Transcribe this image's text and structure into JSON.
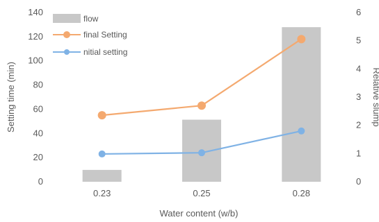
{
  "chart_data": {
    "type": "bar",
    "categories": [
      "0.23",
      "0.25",
      "0.28"
    ],
    "xlabel": "Water content (w/b)",
    "ylabel_left": "Setting time (min)",
    "ylabel_right": "Relative slump",
    "ylim_left": [
      0,
      140
    ],
    "yticks_left": [
      "0",
      "20",
      "40",
      "60",
      "80",
      "100",
      "120",
      "140"
    ],
    "ylim_right": [
      0,
      6
    ],
    "yticks_right": [
      "0",
      "1",
      "2",
      "3",
      "4",
      "5",
      "6"
    ],
    "grid": false,
    "legend_position": "top-left",
    "series": [
      {
        "name": "flow",
        "kind": "bar",
        "axis": "right",
        "color": "#c8c8c8",
        "values": [
          0.42,
          2.2,
          5.48
        ]
      },
      {
        "name": "final Setting",
        "kind": "line",
        "axis": "left",
        "color": "#f4a96f",
        "values": [
          55,
          63,
          118
        ]
      },
      {
        "name": "nitial setting",
        "kind": "line",
        "axis": "left",
        "color": "#7fb2e5",
        "values": [
          23,
          24,
          42
        ]
      }
    ]
  }
}
